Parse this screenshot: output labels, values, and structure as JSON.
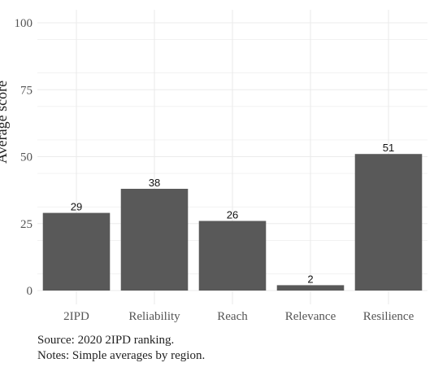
{
  "chart_data": {
    "type": "bar",
    "categories": [
      "2IPD",
      "Reliability",
      "Reach",
      "Relevance",
      "Resilience"
    ],
    "values": [
      29,
      38,
      26,
      2,
      51
    ],
    "data_labels": [
      "29",
      "38",
      "26",
      "2",
      "51"
    ],
    "ylabel": "Average score",
    "ylim": [
      0,
      100
    ],
    "yticks": [
      0,
      25,
      50,
      75,
      100
    ],
    "grid": true,
    "bar_color": "#595959",
    "grid_color": "#ebebeb"
  },
  "footer": {
    "source": "Source: 2020 2IPD ranking.",
    "notes": "Notes: Simple averages by region."
  }
}
